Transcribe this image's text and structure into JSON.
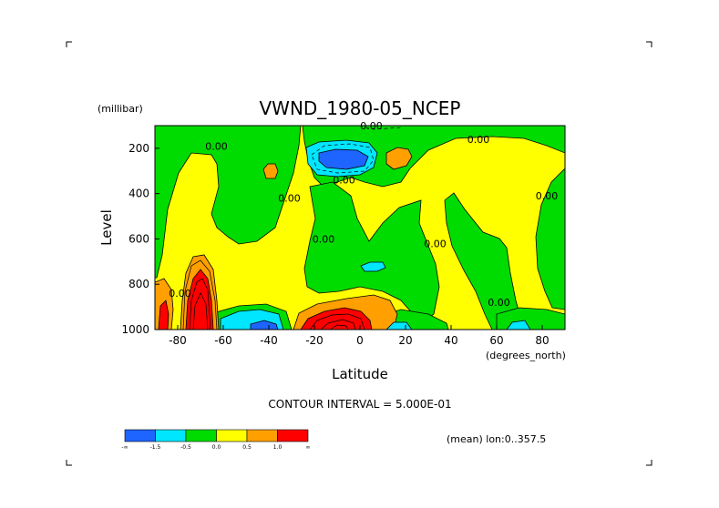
{
  "chart_data": {
    "type": "heatmap",
    "title": "VWND_1980-05_NCEP",
    "xlabel": "Latitude",
    "ylabel": "Level",
    "xunits": "(degrees_north)",
    "yunits": "(millibar)",
    "xlim": [
      -90,
      90
    ],
    "ylim": [
      1000,
      100
    ],
    "x_ticks": [
      -80,
      -60,
      -40,
      -20,
      0,
      20,
      40,
      60,
      80
    ],
    "y_ticks": [
      200,
      400,
      600,
      800,
      1000
    ],
    "contour_interval_text": "CONTOUR INTERVAL = 5.000E-01",
    "annotation": "(mean) lon:0..357.5",
    "contour_labels": [
      {
        "text": "0.00",
        "lat": 5,
        "lev": 100
      },
      {
        "text": "0.00",
        "lat": 52,
        "lev": 160
      },
      {
        "text": "0.00",
        "lat": -63,
        "lev": 190
      },
      {
        "text": "0.00",
        "lat": -7,
        "lev": 340
      },
      {
        "text": "0.00",
        "lat": -31,
        "lev": 420
      },
      {
        "text": "0.00",
        "lat": -16,
        "lev": 600
      },
      {
        "text": "0.00",
        "lat": 33,
        "lev": 620
      },
      {
        "text": "0.00",
        "lat": 82,
        "lev": 410
      },
      {
        "text": "0.00",
        "lat": 61,
        "lev": 880
      },
      {
        "text": "0.00",
        "lat": -79,
        "lev": 840
      }
    ],
    "legend": {
      "labels": [
        "-∞",
        "-1.5",
        "-0.5",
        "0.0",
        "0.5",
        "1.0",
        "∞"
      ],
      "colors": [
        "#1e64ff",
        "#00e6ff",
        "#00dc00",
        "#ffff00",
        "#ffa000",
        "#ff0000"
      ]
    },
    "field_colors": {
      "blue": "#1e64ff",
      "cyan": "#00e6ff",
      "green": "#00dc00",
      "yellow": "#ffff00",
      "orange": "#ffa000",
      "red": "#ff0000"
    }
  }
}
